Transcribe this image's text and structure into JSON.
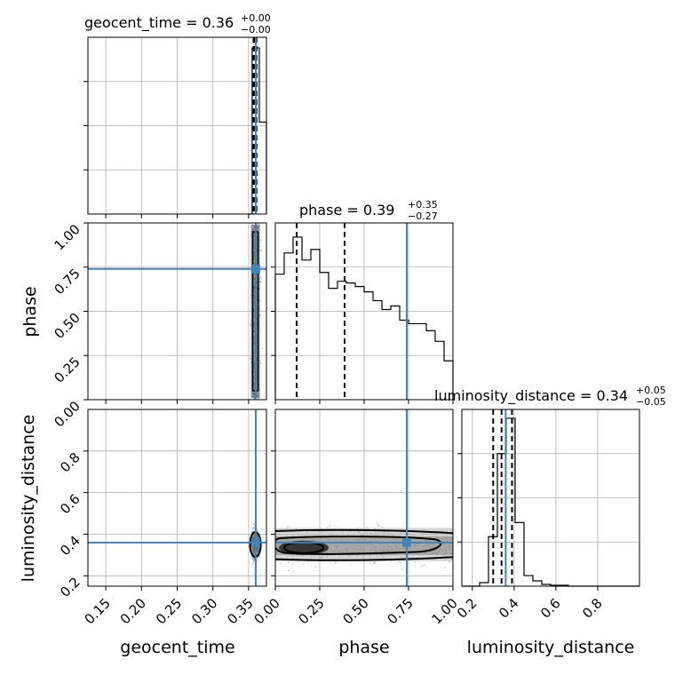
{
  "chart_data": {
    "type": "corner",
    "parameters": [
      "geocent_time",
      "phase",
      "luminosity_distance"
    ],
    "axis_labels": {
      "geocent_time": "geocent_time",
      "phase": "phase",
      "luminosity_distance": "luminosity_distance"
    },
    "truths": {
      "geocent_time": 0.36,
      "phase": 0.74,
      "luminosity_distance": 0.36
    },
    "truth_color": "#4682b4",
    "titles": [
      {
        "param": "geocent_time",
        "text": "geocent_time = 0.36",
        "plus": "+0.00",
        "minus": "−0.00"
      },
      {
        "param": "phase",
        "text": "phase = 0.39",
        "plus": "+0.35",
        "minus": "−0.27"
      },
      {
        "param": "luminosity_distance",
        "text": "luminosity_distance = 0.34",
        "plus": "+0.05",
        "minus": "−0.05"
      }
    ],
    "axes": {
      "geocent_time": {
        "range": [
          0.125,
          0.375
        ],
        "ticks": [
          0.15,
          0.2,
          0.25,
          0.3,
          0.35
        ],
        "tick_labels": [
          "0.15",
          "0.20",
          "0.25",
          "0.30",
          "0.35"
        ]
      },
      "phase": {
        "range": [
          0.0,
          1.0
        ],
        "ticks": [
          0.0,
          0.25,
          0.5,
          0.75,
          1.0
        ],
        "tick_labels": [
          "0.00",
          "0.25",
          "0.50",
          "0.75",
          "1.00"
        ]
      },
      "luminosity_distance": {
        "range": [
          0.15,
          1.0
        ],
        "ticks": [
          0.2,
          0.4,
          0.6,
          0.8
        ],
        "tick_labels": [
          "0.2",
          "0.4",
          "0.6",
          "0.8"
        ]
      }
    },
    "histograms": {
      "geocent_time": {
        "range": [
          0.35,
          0.375
        ],
        "counts": [
          0.0,
          0.94,
          0.94,
          0.52,
          0.52
        ],
        "quantiles": [
          0.357,
          0.359,
          0.361
        ]
      },
      "phase": {
        "range": [
          0.0,
          1.0
        ],
        "counts": [
          0.71,
          0.83,
          0.92,
          0.79,
          0.85,
          0.72,
          0.63,
          0.67,
          0.66,
          0.64,
          0.61,
          0.56,
          0.51,
          0.53,
          0.45,
          0.43,
          0.43,
          0.39,
          0.33,
          0.22
        ],
        "quantiles": [
          0.12,
          0.39,
          0.74
        ]
      },
      "luminosity_distance": {
        "range": [
          0.15,
          1.0
        ],
        "counts": [
          0.0,
          0.0,
          0.02,
          0.28,
          0.75,
          0.95,
          0.36,
          0.06,
          0.03,
          0.01,
          0.005,
          0.005,
          0.0,
          0.0,
          0.0,
          0.0,
          0.0,
          0.0,
          0.0,
          0.0
        ],
        "quantiles": [
          0.3,
          0.34,
          0.39
        ]
      }
    },
    "grid": true
  }
}
